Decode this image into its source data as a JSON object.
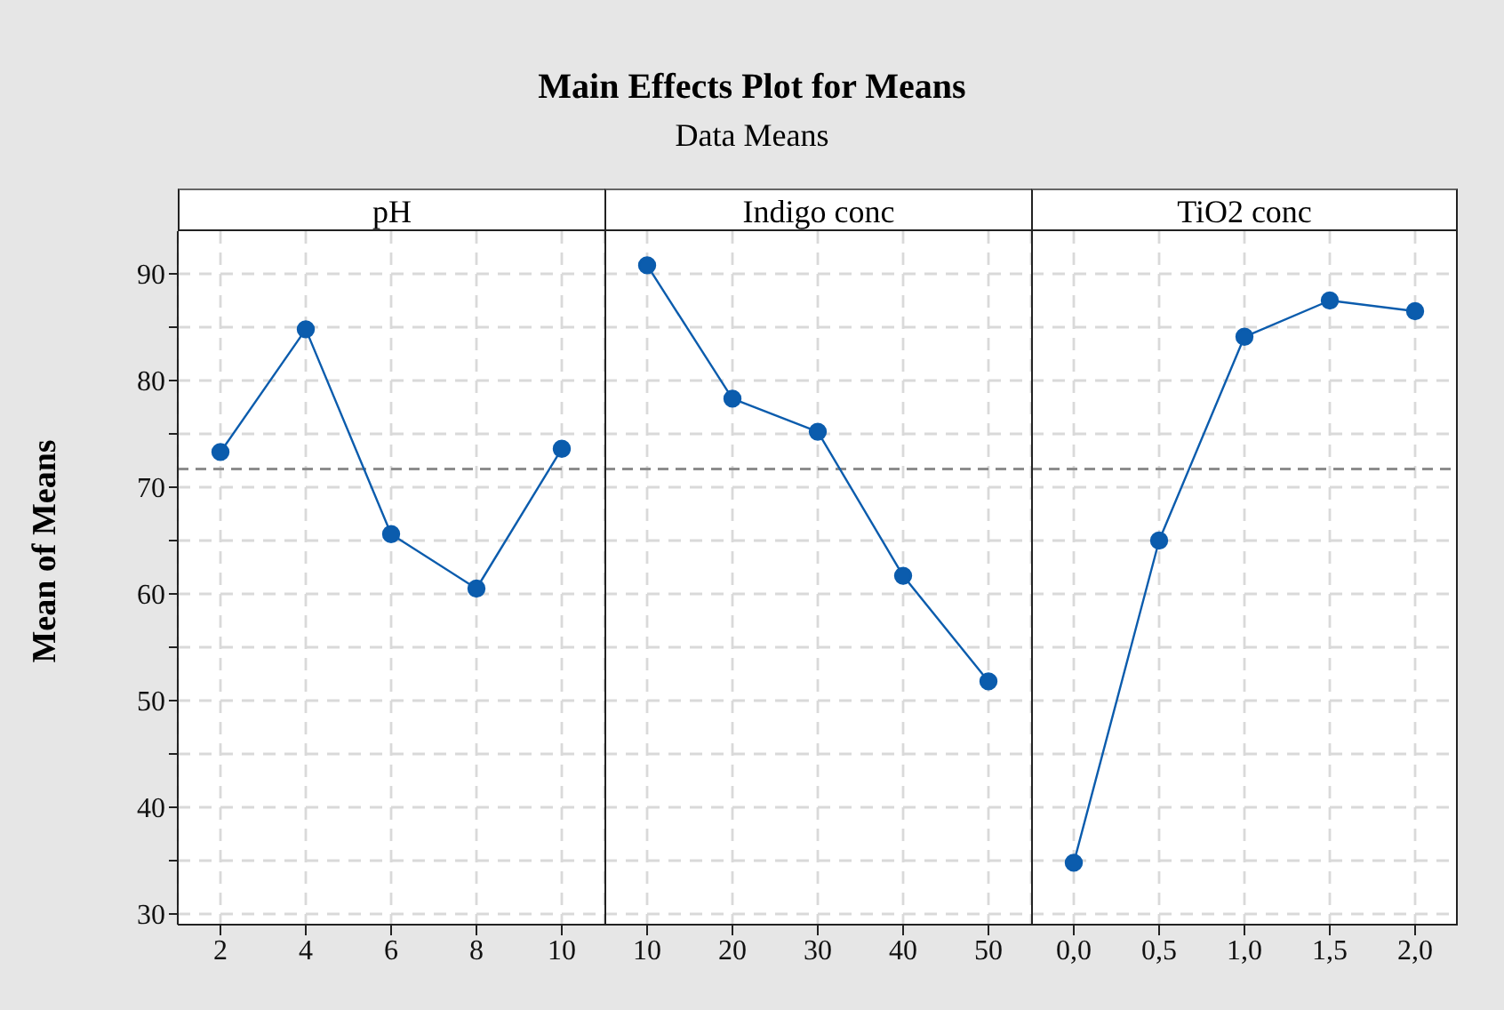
{
  "chart_data": [
    {
      "type": "line",
      "title": "pH",
      "annotations": [
        "Main Effects Plot for Means",
        "Data Means"
      ],
      "ylabel": "Mean of Means",
      "categories": [
        "2",
        "4",
        "6",
        "8",
        "10"
      ],
      "series": [
        {
          "color": "#0b5cad",
          "values": [
            73.3,
            84.8,
            65.6,
            60.5,
            73.6
          ]
        }
      ],
      "ylim": [
        29,
        94
      ],
      "yticks": [
        30,
        {
          "value": 35,
          "label": null
        },
        40,
        {
          "value": 45,
          "label": null
        },
        50,
        {
          "value": 55,
          "label": null
        },
        60,
        {
          "value": 65,
          "label": null
        },
        70,
        {
          "value": 75,
          "label": null
        },
        80,
        {
          "value": 85,
          "label": null
        },
        90
      ],
      "grid": true,
      "marker": "circle",
      "line_style": "solid",
      "ref_lines": [
        {
          "axis": "y",
          "value": 71.7,
          "color": "#8c8c8c",
          "line_style": "dashed"
        }
      ]
    },
    {
      "type": "line",
      "title": "Indigo conc",
      "categories": [
        "10",
        "20",
        "30",
        "40",
        "50"
      ],
      "series": [
        {
          "color": "#0b5cad",
          "values": [
            90.8,
            78.3,
            75.2,
            61.7,
            51.8
          ]
        }
      ],
      "ylim": [
        29,
        94
      ],
      "tick_labels": "x",
      "grid": true,
      "marker": "circle",
      "line_style": "solid",
      "ref_lines": [
        {
          "axis": "y",
          "value": 71.7,
          "color": "#8c8c8c",
          "line_style": "dashed"
        }
      ]
    },
    {
      "type": "line",
      "title": "TiO2 conc",
      "categories": [
        "0,0",
        "0,5",
        "1,0",
        "1,5",
        "2,0"
      ],
      "series": [
        {
          "color": "#0b5cad",
          "values": [
            34.8,
            65.0,
            84.1,
            87.5,
            86.5
          ]
        }
      ],
      "ylim": [
        29,
        94
      ],
      "tick_labels": "x",
      "grid": true,
      "marker": "circle",
      "line_style": "solid",
      "ref_lines": [
        {
          "axis": "y",
          "value": 71.7,
          "color": "#8c8c8c",
          "line_style": "dashed"
        }
      ]
    }
  ]
}
